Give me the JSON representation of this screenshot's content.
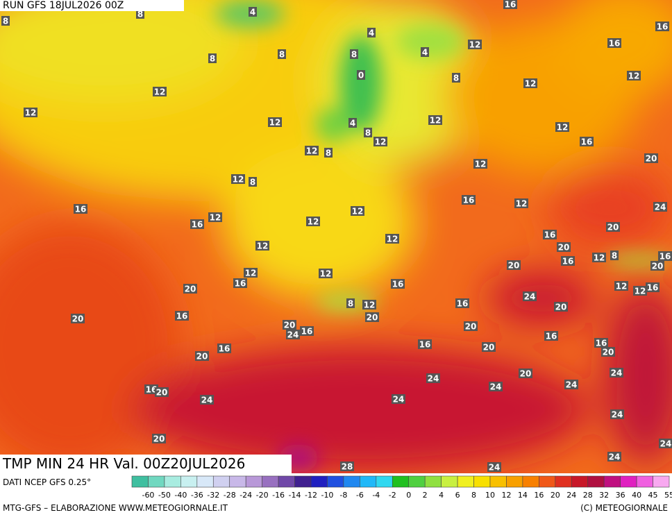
{
  "header": {
    "run": "RUN GFS 18JUL2026 00Z"
  },
  "title": "TMP MIN 24 HR Val. 00Z20JUL2026",
  "source": "DATI NCEP GFS 0.25°",
  "credit_left": "MTG-GFS – ELABORAZIONE WWW.METEOGIORNALE.IT",
  "credit_right": "(C) METEOGIORNALE",
  "map_labels": [
    4,
    8,
    8,
    16,
    16,
    4,
    8,
    4,
    12,
    16,
    8,
    8,
    0,
    8,
    12,
    12,
    12,
    12,
    12,
    4,
    12,
    12,
    8,
    12,
    16,
    12,
    8,
    12,
    20,
    12,
    8,
    16,
    12,
    24,
    16,
    12,
    12,
    16,
    12,
    20,
    16,
    12,
    12,
    20,
    16,
    12,
    8,
    16,
    20,
    20,
    12,
    12,
    16,
    16,
    12,
    16,
    12,
    20,
    24,
    16,
    8,
    12,
    20,
    16,
    20,
    20,
    20,
    16,
    24,
    20,
    16,
    16,
    20,
    16,
    16,
    20,
    20,
    24,
    24,
    20,
    24,
    24,
    16,
    20,
    24,
    24,
    24,
    20,
    24,
    24,
    28,
    24
  ],
  "colorbar": {
    "ticks": [
      -60,
      -50,
      -40,
      -36,
      -32,
      -28,
      -24,
      -20,
      -16,
      -14,
      -12,
      -10,
      -8,
      -6,
      -4,
      -2,
      0,
      2,
      4,
      6,
      8,
      10,
      12,
      14,
      16,
      20,
      24,
      28,
      32,
      36,
      40,
      45,
      55
    ],
    "colors": [
      "#3fbfa0",
      "#70d8c0",
      "#a8ece0",
      "#c8f0f0",
      "#d8e8f8",
      "#d0d0f0",
      "#c8b8e8",
      "#b898d8",
      "#9870c0",
      "#7048a8",
      "#402090",
      "#2020c0",
      "#2050e0",
      "#2088f0",
      "#20b8f8",
      "#30d8f0",
      "#20c020",
      "#50d040",
      "#90e040",
      "#c8f040",
      "#f0f020",
      "#f8e000",
      "#f8c000",
      "#f8a000",
      "#f88000",
      "#f05818",
      "#e03020",
      "#c81828",
      "#b01040",
      "#c01080",
      "#e020c0",
      "#f060e0",
      "#f8a8f0"
    ]
  }
}
